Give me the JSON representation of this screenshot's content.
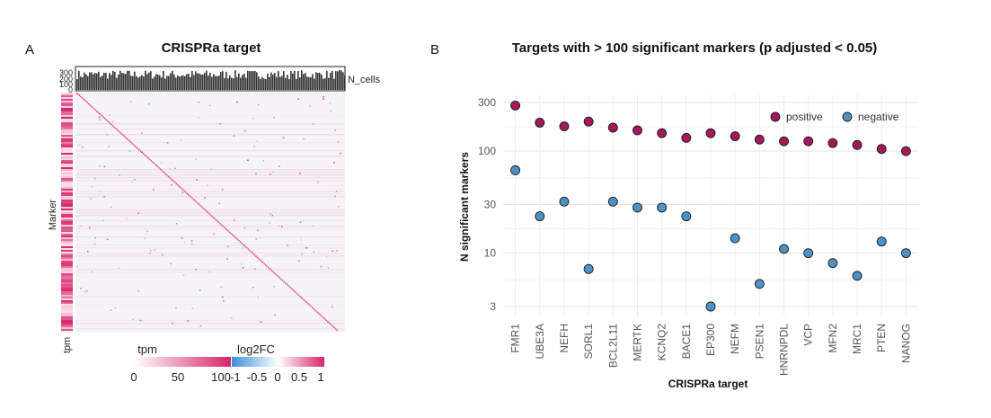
{
  "panels": {
    "a": {
      "letter": "A",
      "title": "CRISPRa target",
      "row_label": "Marker",
      "bar_label": "N_cells",
      "bar_ticks": [
        "300",
        "200",
        "100",
        "0"
      ],
      "side_label": "tpm",
      "legend_tpm": {
        "title": "tpm",
        "ticks": [
          "0",
          "50",
          "100"
        ]
      },
      "legend_fc": {
        "title": "log2FC",
        "ticks": [
          "-1",
          "-0.5",
          "0",
          "0.5",
          "1"
        ]
      },
      "colors": {
        "pink": "#d6246e",
        "blue": "#3a8fd9",
        "bar": "#333333"
      }
    },
    "b": {
      "letter": "B",
      "title": "Targets with  > 100 significant markers (p adjusted < 0.05)"
    }
  },
  "chart_data": {
    "type": "scatter",
    "title": "Targets with  > 100 significant markers (p adjusted < 0.05)",
    "xlabel": "CRISPRa target",
    "ylabel": "N significant markers",
    "y_scale": "log",
    "ylim": [
      2.4,
      360
    ],
    "yticks": [
      3,
      10,
      30,
      100,
      300
    ],
    "legend_position": "top-right",
    "categories": [
      "FMR1",
      "UBE3A",
      "NEFH",
      "SORL1",
      "BCL2L11",
      "MERTK",
      "KCNQ2",
      "BACE1",
      "EP300",
      "NEFM",
      "PSEN1",
      "HNRNPDL",
      "VCP",
      "MFN2",
      "MRC1",
      "PTEN",
      "NANOG"
    ],
    "series": [
      {
        "name": "positive",
        "color": "#a3195b",
        "values": [
          280,
          190,
          175,
          195,
          170,
          160,
          150,
          135,
          150,
          140,
          130,
          125,
          125,
          120,
          115,
          105,
          100
        ]
      },
      {
        "name": "negative",
        "color": "#4c93c4",
        "values": [
          65,
          23,
          32,
          7,
          32,
          28,
          28,
          23,
          3,
          14,
          5,
          11,
          10,
          8,
          6,
          13,
          10
        ]
      }
    ]
  }
}
